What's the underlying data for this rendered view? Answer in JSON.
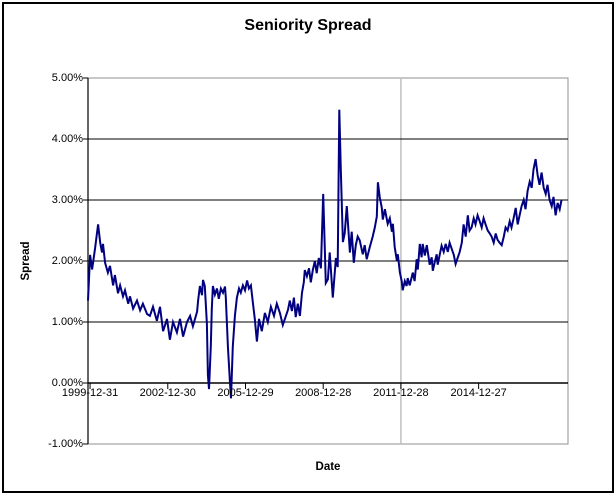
{
  "chart_data": {
    "type": "line",
    "title": "Seniority Spread",
    "xlabel": "Date",
    "ylabel": "Spread",
    "x_tick_labels": [
      "1999-12-31",
      "2002-12-30",
      "2005-12-29",
      "2008-12-28",
      "2011-12-28",
      "2014-12-27"
    ],
    "x_tick_years": [
      2000,
      2003,
      2006,
      2009,
      2012,
      2015
    ],
    "y_tick_labels": [
      "5.00%",
      "4.00%",
      "3.00%",
      "2.00%",
      "1.00%",
      "0.00%",
      "-1.00%"
    ],
    "y_tick_values": [
      5,
      4,
      3,
      2,
      1,
      0,
      -1
    ],
    "x_domain": [
      1999.92,
      2018.45
    ],
    "y_domain": [
      -1,
      5
    ],
    "axis_cross_y": 0,
    "grid": "horizontal-black, single-vertical-gray",
    "vertical_gridline_year": 2012,
    "legend": "none",
    "colors": {
      "line": "#000080",
      "gridline": "#000000",
      "plot_border": "#909090",
      "vertical_gridline": "#c0c0c0",
      "background": "#ffffff",
      "outer_border": "#000000",
      "text": "#000000"
    },
    "series": [
      {
        "name": "Seniority Spread",
        "points": [
          [
            1999.92,
            1.35
          ],
          [
            2000.0,
            2.1
          ],
          [
            2000.08,
            1.86
          ],
          [
            2000.19,
            2.2
          ],
          [
            2000.31,
            2.6
          ],
          [
            2000.39,
            2.3
          ],
          [
            2000.46,
            2.14
          ],
          [
            2000.5,
            2.28
          ],
          [
            2000.58,
            1.97
          ],
          [
            2000.69,
            1.81
          ],
          [
            2000.77,
            1.92
          ],
          [
            2000.89,
            1.6
          ],
          [
            2000.96,
            1.77
          ],
          [
            2001.08,
            1.47
          ],
          [
            2001.16,
            1.6
          ],
          [
            2001.27,
            1.42
          ],
          [
            2001.35,
            1.52
          ],
          [
            2001.47,
            1.3
          ],
          [
            2001.54,
            1.42
          ],
          [
            2001.66,
            1.22
          ],
          [
            2001.81,
            1.35
          ],
          [
            2001.93,
            1.19
          ],
          [
            2002.04,
            1.3
          ],
          [
            2002.2,
            1.13
          ],
          [
            2002.31,
            1.1
          ],
          [
            2002.43,
            1.25
          ],
          [
            2002.58,
            1.02
          ],
          [
            2002.7,
            1.25
          ],
          [
            2002.82,
            0.85
          ],
          [
            2002.97,
            1.05
          ],
          [
            2003.08,
            0.71
          ],
          [
            2003.2,
            1.0
          ],
          [
            2003.35,
            0.83
          ],
          [
            2003.47,
            1.05
          ],
          [
            2003.59,
            0.76
          ],
          [
            2003.74,
            1.0
          ],
          [
            2003.86,
            1.1
          ],
          [
            2003.97,
            0.93
          ],
          [
            2004.13,
            1.17
          ],
          [
            2004.17,
            1.35
          ],
          [
            2004.24,
            1.59
          ],
          [
            2004.32,
            1.44
          ],
          [
            2004.36,
            1.69
          ],
          [
            2004.43,
            1.59
          ],
          [
            2004.51,
            0.97
          ],
          [
            2004.55,
            0.13
          ],
          [
            2004.59,
            -0.1
          ],
          [
            2004.66,
            0.6
          ],
          [
            2004.7,
            1.22
          ],
          [
            2004.74,
            1.59
          ],
          [
            2004.82,
            1.45
          ],
          [
            2004.9,
            1.55
          ],
          [
            2004.97,
            1.38
          ],
          [
            2005.05,
            1.55
          ],
          [
            2005.13,
            1.48
          ],
          [
            2005.21,
            1.58
          ],
          [
            2005.24,
            1.4
          ],
          [
            2005.32,
            0.6
          ],
          [
            2005.4,
            0.0
          ],
          [
            2005.44,
            -0.25
          ],
          [
            2005.51,
            0.6
          ],
          [
            2005.59,
            1.1
          ],
          [
            2005.67,
            1.4
          ],
          [
            2005.75,
            1.55
          ],
          [
            2005.82,
            1.48
          ],
          [
            2005.9,
            1.6
          ],
          [
            2005.98,
            1.52
          ],
          [
            2006.06,
            1.68
          ],
          [
            2006.13,
            1.55
          ],
          [
            2006.21,
            1.6
          ],
          [
            2006.29,
            1.3
          ],
          [
            2006.36,
            1.05
          ],
          [
            2006.44,
            0.68
          ],
          [
            2006.52,
            1.05
          ],
          [
            2006.63,
            0.85
          ],
          [
            2006.75,
            1.15
          ],
          [
            2006.86,
            1.0
          ],
          [
            2006.98,
            1.25
          ],
          [
            2007.1,
            1.1
          ],
          [
            2007.21,
            1.3
          ],
          [
            2007.33,
            1.15
          ],
          [
            2007.44,
            0.95
          ],
          [
            2007.56,
            1.1
          ],
          [
            2007.64,
            1.2
          ],
          [
            2007.71,
            1.35
          ],
          [
            2007.79,
            1.18
          ],
          [
            2007.87,
            1.4
          ],
          [
            2007.94,
            1.08
          ],
          [
            2008.02,
            1.3
          ],
          [
            2008.1,
            1.1
          ],
          [
            2008.18,
            1.48
          ],
          [
            2008.25,
            1.65
          ],
          [
            2008.29,
            1.85
          ],
          [
            2008.37,
            1.75
          ],
          [
            2008.45,
            1.88
          ],
          [
            2008.52,
            1.65
          ],
          [
            2008.6,
            1.85
          ],
          [
            2008.68,
            2.0
          ],
          [
            2008.75,
            1.8
          ],
          [
            2008.83,
            2.05
          ],
          [
            2008.91,
            1.88
          ],
          [
            2009.0,
            3.1
          ],
          [
            2009.1,
            1.64
          ],
          [
            2009.18,
            1.7
          ],
          [
            2009.25,
            2.14
          ],
          [
            2009.37,
            1.4
          ],
          [
            2009.49,
            2.05
          ],
          [
            2009.56,
            1.9
          ],
          [
            2009.62,
            4.48
          ],
          [
            2009.68,
            3.5
          ],
          [
            2009.76,
            2.31
          ],
          [
            2009.83,
            2.45
          ],
          [
            2009.91,
            2.9
          ],
          [
            2010.03,
            2.14
          ],
          [
            2010.1,
            2.48
          ],
          [
            2010.18,
            1.97
          ],
          [
            2010.26,
            2.26
          ],
          [
            2010.33,
            2.4
          ],
          [
            2010.41,
            2.34
          ],
          [
            2010.53,
            2.11
          ],
          [
            2010.6,
            2.26
          ],
          [
            2010.68,
            2.03
          ],
          [
            2010.8,
            2.23
          ],
          [
            2010.91,
            2.4
          ],
          [
            2010.99,
            2.55
          ],
          [
            2011.07,
            2.73
          ],
          [
            2011.11,
            3.29
          ],
          [
            2011.18,
            3.05
          ],
          [
            2011.26,
            2.87
          ],
          [
            2011.3,
            2.68
          ],
          [
            2011.38,
            2.85
          ],
          [
            2011.49,
            2.61
          ],
          [
            2011.57,
            2.7
          ],
          [
            2011.65,
            2.48
          ],
          [
            2011.69,
            2.61
          ],
          [
            2011.76,
            2.23
          ],
          [
            2011.84,
            2.01
          ],
          [
            2011.88,
            2.11
          ],
          [
            2011.96,
            1.81
          ],
          [
            2012.03,
            1.67
          ],
          [
            2012.07,
            1.52
          ],
          [
            2012.15,
            1.67
          ],
          [
            2012.22,
            1.59
          ],
          [
            2012.26,
            1.72
          ],
          [
            2012.34,
            1.6
          ],
          [
            2012.46,
            1.81
          ],
          [
            2012.53,
            1.67
          ],
          [
            2012.61,
            2.03
          ],
          [
            2012.65,
            1.86
          ],
          [
            2012.73,
            2.28
          ],
          [
            2012.8,
            2.06
          ],
          [
            2012.84,
            2.28
          ],
          [
            2012.92,
            2.09
          ],
          [
            2013.0,
            2.26
          ],
          [
            2013.11,
            1.94
          ],
          [
            2013.19,
            2.06
          ],
          [
            2013.23,
            1.84
          ],
          [
            2013.3,
            1.97
          ],
          [
            2013.38,
            2.11
          ],
          [
            2013.42,
            1.94
          ],
          [
            2013.5,
            2.11
          ],
          [
            2013.57,
            2.25
          ],
          [
            2013.65,
            2.15
          ],
          [
            2013.73,
            2.28
          ],
          [
            2013.81,
            2.15
          ],
          [
            2013.88,
            2.3
          ],
          [
            2013.96,
            2.2
          ],
          [
            2014.04,
            2.1
          ],
          [
            2014.11,
            1.95
          ],
          [
            2014.19,
            2.05
          ],
          [
            2014.27,
            2.15
          ],
          [
            2014.35,
            2.3
          ],
          [
            2014.42,
            2.6
          ],
          [
            2014.5,
            2.4
          ],
          [
            2014.58,
            2.75
          ],
          [
            2014.65,
            2.5
          ],
          [
            2014.73,
            2.55
          ],
          [
            2014.81,
            2.7
          ],
          [
            2014.88,
            2.6
          ],
          [
            2014.96,
            2.75
          ],
          [
            2015.04,
            2.65
          ],
          [
            2015.12,
            2.55
          ],
          [
            2015.19,
            2.7
          ],
          [
            2015.27,
            2.6
          ],
          [
            2015.35,
            2.5
          ],
          [
            2015.43,
            2.45
          ],
          [
            2015.5,
            2.4
          ],
          [
            2015.58,
            2.3
          ],
          [
            2015.66,
            2.45
          ],
          [
            2015.73,
            2.35
          ],
          [
            2015.81,
            2.3
          ],
          [
            2015.89,
            2.26
          ],
          [
            2015.97,
            2.4
          ],
          [
            2016.04,
            2.55
          ],
          [
            2016.12,
            2.5
          ],
          [
            2016.2,
            2.65
          ],
          [
            2016.27,
            2.55
          ],
          [
            2016.35,
            2.7
          ],
          [
            2016.43,
            2.87
          ],
          [
            2016.51,
            2.6
          ],
          [
            2016.58,
            2.75
          ],
          [
            2016.66,
            2.9
          ],
          [
            2016.74,
            3.0
          ],
          [
            2016.81,
            2.85
          ],
          [
            2016.89,
            3.15
          ],
          [
            2016.97,
            3.3
          ],
          [
            2017.05,
            3.2
          ],
          [
            2017.12,
            3.5
          ],
          [
            2017.2,
            3.67
          ],
          [
            2017.28,
            3.4
          ],
          [
            2017.35,
            3.25
          ],
          [
            2017.43,
            3.45
          ],
          [
            2017.51,
            3.2
          ],
          [
            2017.59,
            3.1
          ],
          [
            2017.66,
            3.25
          ],
          [
            2017.74,
            3.0
          ],
          [
            2017.82,
            2.9
          ],
          [
            2017.89,
            3.05
          ],
          [
            2017.97,
            2.75
          ],
          [
            2018.05,
            2.95
          ],
          [
            2018.13,
            2.85
          ],
          [
            2018.2,
            3.0
          ]
        ]
      }
    ]
  }
}
